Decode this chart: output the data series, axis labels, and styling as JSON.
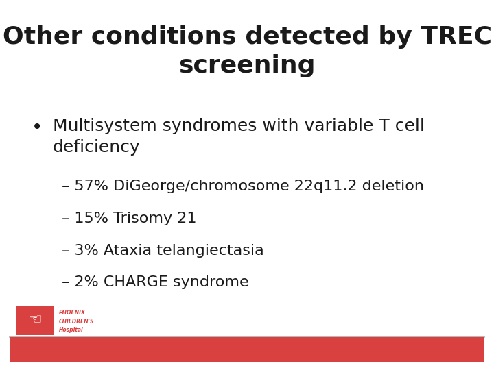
{
  "title_line1": "Other conditions detected by TREC",
  "title_line2": "screening",
  "bullet_text": "Multisystem syndromes with variable T cell\ndeficiency",
  "sub_bullets": [
    "– 57% DiGeorge/chromosome 22q11.2 deletion",
    "– 15% Trisomy 21",
    "– 3% Ataxia telangiectasia",
    "– 2% CHARGE syndrome"
  ],
  "bg_color": "#ffffff",
  "title_color": "#1a1a1a",
  "text_color": "#1a1a1a",
  "bullet_color": "#1a1a1a",
  "footer_bar_color": "#d94040",
  "footer_line_color": "#aaaaaa",
  "title_fontsize": 26,
  "bullet_fontsize": 18,
  "sub_bullet_fontsize": 16
}
